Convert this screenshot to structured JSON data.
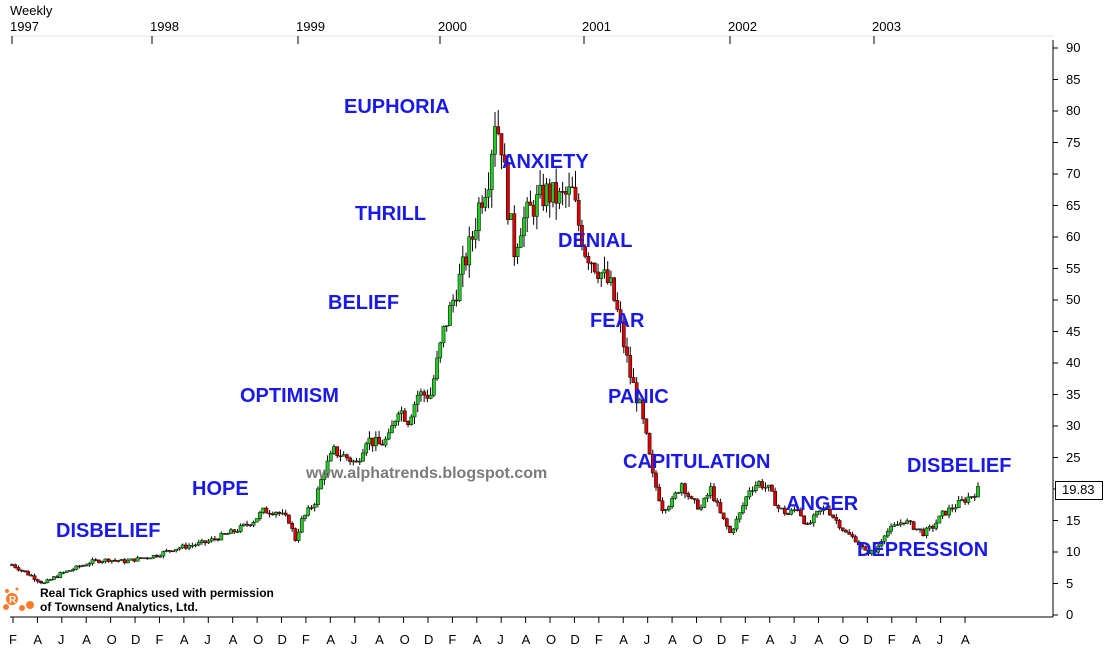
{
  "chart_data": {
    "type": "candlestick",
    "title": "",
    "period_label": "Weekly",
    "year_ticks": [
      "1997",
      "1998",
      "1999",
      "2000",
      "2001",
      "2002",
      "2003"
    ],
    "month_ticks": [
      "F",
      "A",
      "J",
      "A",
      "O",
      "D",
      "F",
      "A",
      "J",
      "A",
      "O",
      "D",
      "F",
      "A",
      "J",
      "A",
      "O",
      "D",
      "F",
      "A",
      "J",
      "A",
      "O",
      "D",
      "F",
      "A",
      "J",
      "A",
      "O",
      "D",
      "F",
      "A",
      "J",
      "A",
      "O",
      "D",
      "F",
      "A",
      "J",
      "A"
    ],
    "y_ticks": [
      0,
      5,
      10,
      15,
      20,
      25,
      30,
      35,
      40,
      45,
      50,
      55,
      60,
      65,
      70,
      75,
      80,
      85,
      90
    ],
    "ylim": [
      0,
      90
    ],
    "last_value_label": "19.83",
    "last_value": 19.83,
    "x_unit": "weeks from Jan 1997",
    "series_points": [
      [
        0,
        8
      ],
      [
        5,
        6.5
      ],
      [
        10,
        5
      ],
      [
        15,
        6.5
      ],
      [
        20,
        7.5
      ],
      [
        25,
        8.5
      ],
      [
        30,
        8.8
      ],
      [
        35,
        8.5
      ],
      [
        40,
        9
      ],
      [
        45,
        9.5
      ],
      [
        50,
        10.5
      ],
      [
        55,
        11
      ],
      [
        60,
        11.5
      ],
      [
        65,
        12.5
      ],
      [
        70,
        13.5
      ],
      [
        75,
        15
      ],
      [
        78,
        16.5
      ],
      [
        82,
        16.5
      ],
      [
        86,
        15
      ],
      [
        88,
        12
      ],
      [
        90,
        15
      ],
      [
        94,
        18
      ],
      [
        97,
        23
      ],
      [
        100,
        26
      ],
      [
        104,
        25
      ],
      [
        107,
        24
      ],
      [
        110,
        28
      ],
      [
        114,
        27
      ],
      [
        117,
        28
      ],
      [
        120,
        33
      ],
      [
        123,
        31
      ],
      [
        126,
        35
      ],
      [
        130,
        35
      ],
      [
        134,
        45
      ],
      [
        137,
        50
      ],
      [
        140,
        55
      ],
      [
        143,
        60
      ],
      [
        145,
        65
      ],
      [
        148,
        70
      ],
      [
        150,
        79
      ],
      [
        152,
        75
      ],
      [
        154,
        65
      ],
      [
        156,
        58
      ],
      [
        158,
        62
      ],
      [
        162,
        65
      ],
      [
        166,
        67
      ],
      [
        170,
        66
      ],
      [
        174,
        67
      ],
      [
        176,
        62
      ],
      [
        178,
        58
      ],
      [
        182,
        55
      ],
      [
        186,
        52
      ],
      [
        188,
        48
      ],
      [
        192,
        38
      ],
      [
        195,
        33
      ],
      [
        197,
        28
      ],
      [
        199,
        22
      ],
      [
        202,
        17
      ],
      [
        205,
        18
      ],
      [
        208,
        21
      ],
      [
        211,
        18
      ],
      [
        214,
        17
      ],
      [
        217,
        20
      ],
      [
        220,
        16
      ],
      [
        223,
        13
      ],
      [
        226,
        16
      ],
      [
        229,
        20
      ],
      [
        232,
        21
      ],
      [
        235,
        20
      ],
      [
        238,
        17
      ],
      [
        241,
        16
      ],
      [
        244,
        17
      ],
      [
        247,
        14
      ],
      [
        250,
        16
      ],
      [
        253,
        17
      ],
      [
        256,
        15
      ],
      [
        259,
        13
      ],
      [
        262,
        12
      ],
      [
        265,
        10
      ],
      [
        268,
        10
      ],
      [
        271,
        13
      ],
      [
        274,
        14
      ],
      [
        277,
        15
      ],
      [
        280,
        14
      ],
      [
        283,
        13
      ],
      [
        286,
        14
      ],
      [
        289,
        16
      ],
      [
        292,
        17
      ],
      [
        295,
        18
      ],
      [
        298,
        19
      ],
      [
        300,
        19.83
      ]
    ],
    "annotations": [
      "DISBELIEF",
      "HOPE",
      "OPTIMISM",
      "BELIEF",
      "THRILL",
      "EUPHORIA",
      "ANXIETY",
      "DENIAL",
      "FEAR",
      "PANIC",
      "CAPITULATION",
      "ANGER",
      "DEPRESSION",
      "DISBELIEF"
    ],
    "watermark": "www.alphatrends.blogspot.com",
    "credit_line1": "Real Tick Graphics used with permission",
    "credit_line2": "of Townsend Analytics, Ltd.",
    "colors": {
      "up": "#22cc22",
      "down": "#dd0000",
      "label": "#1a1ae6",
      "watermark": "#7a7a7a"
    }
  }
}
